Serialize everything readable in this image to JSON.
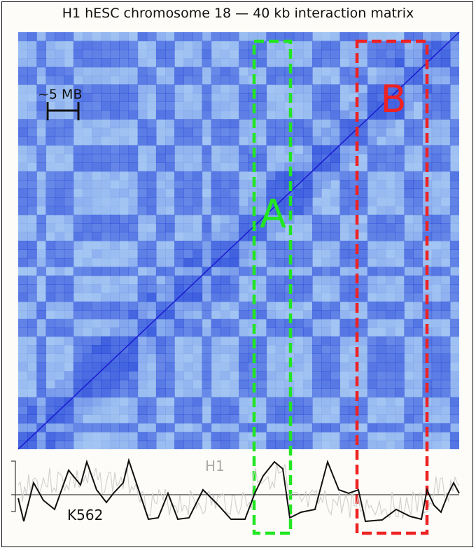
{
  "title": "H1 hESC chromosome 18 — 40 kb interaction matrix",
  "scale_bar": {
    "label": "~5 MB"
  },
  "regions": [
    {
      "label": "A",
      "color": "#22e622"
    },
    {
      "label": "B",
      "color": "#ee2222"
    }
  ],
  "tracks": [
    {
      "name": "H1",
      "color": "#aaaaaa"
    },
    {
      "name": "K562",
      "color": "#111111"
    }
  ],
  "colors": {
    "matrix_background": "#aacdf5",
    "matrix_high": "#1f3fd8",
    "diagonal": "#1a1ad0"
  }
}
